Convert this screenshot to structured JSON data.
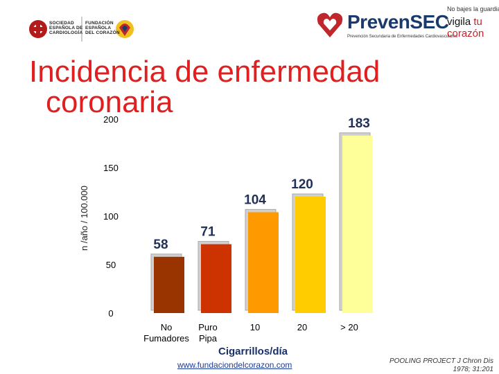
{
  "logos": {
    "sec": {
      "lines": [
        "SOCIEDAD",
        "ESPAÑOLA DE",
        "CARDIOLOGÍA"
      ]
    },
    "fundacion": {
      "lines": [
        "FUNDACIÓN",
        "ESPAÑOLA",
        "DEL CORAZÓN"
      ]
    },
    "prevensec": {
      "name": "PrevenSEC",
      "subtitle": "Prevención Secundaria de Enfermedades Cardiovasculares"
    },
    "vigila": {
      "top": "No bajes la guardia",
      "line1_a": "vigila",
      "line1_b": "tu",
      "line2": "corazón"
    }
  },
  "title": {
    "line1": "Incidencia de enfermedad",
    "line2": "coronaria"
  },
  "chart_data": {
    "type": "bar",
    "categories": [
      "No Fumadores",
      "Puro Pipa",
      "10",
      "20",
      "> 20"
    ],
    "category_lines": [
      [
        "No",
        "Fumadores"
      ],
      [
        "Puro",
        "Pipa"
      ],
      [
        "10"
      ],
      [
        "20"
      ],
      [
        "> 20"
      ]
    ],
    "values": [
      58,
      71,
      104,
      120,
      183
    ],
    "data_labels": [
      "58",
      "71",
      "104",
      "120",
      "183"
    ],
    "colors": [
      "#993300",
      "#cc3300",
      "#ff9900",
      "#ffcc00",
      "#ffff99"
    ],
    "ylabel": "n /año / 100.000",
    "xlabel": "Cigarrillos/día",
    "ylim": [
      0,
      200
    ],
    "yticks": [
      "0",
      "50",
      "100",
      "150",
      "200"
    ],
    "grid": false
  },
  "footer": {
    "url": "www.fundaciondelcorazon.com",
    "source": "POOLING PROJECT J Chron Dis 1978; 31:201"
  }
}
